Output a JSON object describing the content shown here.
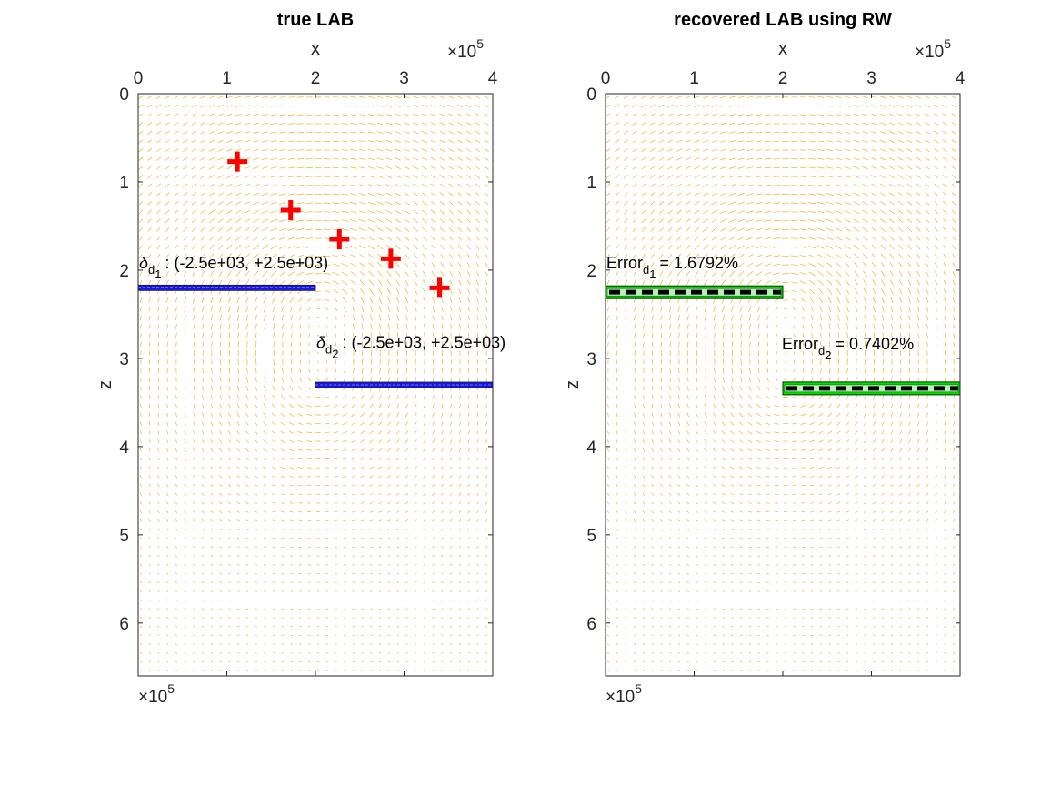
{
  "colors": {
    "arrow": "#f0a500",
    "marker": "#ff0000",
    "true_segment": "#1a1adc",
    "recovered_outline": "#00cc00",
    "recovered_dash": "#000000",
    "axes": "#262626"
  },
  "chart_data": [
    {
      "type": "quiver",
      "title": "true LAB",
      "xlabel": "x",
      "ylabel": "z",
      "x_exponent_label": "×10",
      "x_exponent_power": "5",
      "z_exponent_label": "×10",
      "z_exponent_power": "5",
      "xlim": [
        0,
        4
      ],
      "zlim": [
        0,
        6.6
      ],
      "z_reversed": true,
      "x_axis_location": "top",
      "xticks": [
        "0",
        "1",
        "2",
        "3",
        "4"
      ],
      "zticks": [
        "0",
        "1",
        "2",
        "3",
        "4",
        "5",
        "6"
      ],
      "markers": {
        "symbol": "+",
        "points": [
          {
            "x": 1.12,
            "z": 0.77
          },
          {
            "x": 1.72,
            "z": 1.32
          },
          {
            "x": 2.27,
            "z": 1.65
          },
          {
            "x": 2.85,
            "z": 1.87
          },
          {
            "x": 3.4,
            "z": 2.2
          }
        ]
      },
      "segments": [
        {
          "x0": 0,
          "x1": 2,
          "z": 2.2,
          "style": "true"
        },
        {
          "x0": 2,
          "x1": 4,
          "z": 3.3,
          "style": "true"
        }
      ],
      "annotations": [
        {
          "symbol": "δ",
          "sub": "d",
          "subsub": "1",
          "text": ": (-2.5e+03, +2.5e+03)",
          "x": 0.0,
          "z": 1.98
        },
        {
          "symbol": "δ",
          "sub": "d",
          "subsub": "2",
          "text": ": (-2.5e+03, +2.5e+03)",
          "x": 2.0,
          "z": 2.88
        }
      ]
    },
    {
      "type": "quiver",
      "title": "recovered LAB using RW",
      "xlabel": "x",
      "ylabel": "z",
      "x_exponent_label": "×10",
      "x_exponent_power": "5",
      "z_exponent_label": "×10",
      "z_exponent_power": "5",
      "xlim": [
        0,
        4
      ],
      "zlim": [
        0,
        6.6
      ],
      "z_reversed": true,
      "x_axis_location": "top",
      "xticks": [
        "0",
        "1",
        "2",
        "3",
        "4"
      ],
      "zticks": [
        "0",
        "1",
        "2",
        "3",
        "4",
        "5",
        "6"
      ],
      "segments": [
        {
          "x0": 0,
          "x1": 2,
          "z": 2.25,
          "style": "recovered"
        },
        {
          "x0": 2,
          "x1": 4,
          "z": 3.34,
          "style": "recovered"
        }
      ],
      "annotations": [
        {
          "symbol": "Error",
          "sub": "d",
          "subsub": "1",
          "text": "= 1.6792%",
          "x": 0.0,
          "z": 1.98
        },
        {
          "symbol": "Error",
          "sub": "d",
          "subsub": "2",
          "text": "= 0.7402%",
          "x": 1.98,
          "z": 2.9
        }
      ]
    }
  ]
}
